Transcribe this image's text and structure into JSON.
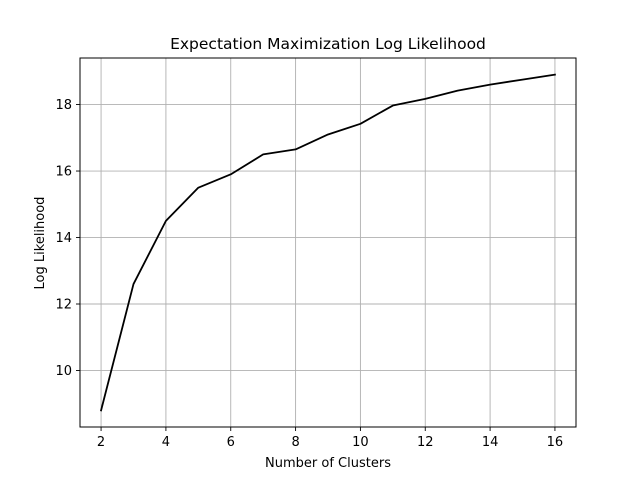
{
  "chart_data": {
    "type": "line",
    "title": "Expectation Maximization Log Likelihood",
    "xlabel": "Number of Clusters",
    "ylabel": "Log Likelihood",
    "x": [
      2,
      3,
      4,
      5,
      6,
      7,
      8,
      9,
      10,
      11,
      12,
      13,
      14,
      15,
      16
    ],
    "series": [
      {
        "values": [
          8.8,
          12.6,
          14.5,
          15.5,
          15.9,
          16.5,
          16.65,
          17.1,
          17.42,
          17.97,
          18.17,
          18.42,
          18.6,
          18.75,
          18.9
        ],
        "color": "#000000"
      }
    ],
    "xlim": [
      1.35,
      16.65
    ],
    "ylim": [
      8.3,
      19.4
    ],
    "xticks": [
      2,
      4,
      6,
      8,
      10,
      12,
      14,
      16
    ],
    "yticks": [
      10,
      12,
      14,
      16,
      18
    ],
    "grid": true,
    "grid_color": "#b0b0b0"
  }
}
